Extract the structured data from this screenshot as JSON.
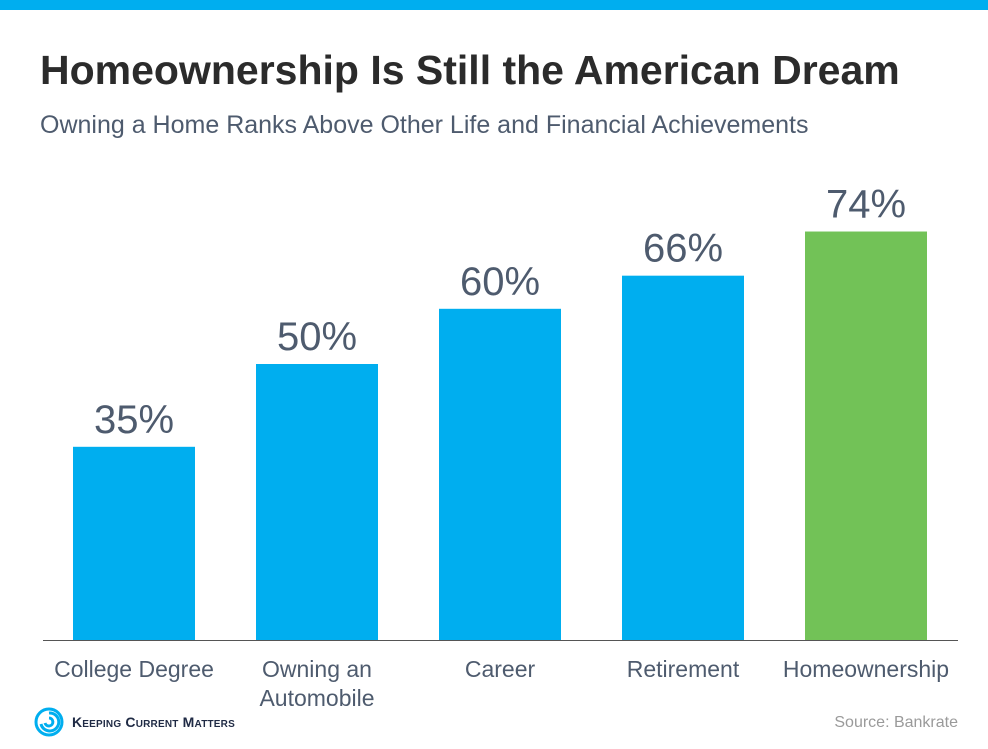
{
  "title": "Homeownership Is Still the American Dream",
  "subtitle": "Owning a Home Ranks Above Other Life and Financial Achievements",
  "colors": {
    "accent_bar": "#00aeef",
    "bar_default": "#00aeef",
    "bar_highlight": "#72c257",
    "value_label": "#4e5b6e",
    "category_label": "#4e5b6e",
    "baseline": "#555555"
  },
  "chart_data": {
    "type": "bar",
    "categories": [
      "College Degree",
      "Owning an Automobile",
      "Career",
      "Retirement",
      "Homeownership"
    ],
    "category_label_lines": [
      [
        "College Degree"
      ],
      [
        "Owning an",
        "Automobile"
      ],
      [
        "Career"
      ],
      [
        "Retirement"
      ],
      [
        "Homeownership"
      ]
    ],
    "values": [
      35,
      50,
      60,
      66,
      74
    ],
    "value_labels": [
      "35%",
      "50%",
      "60%",
      "66%",
      "74%"
    ],
    "highlight_category": "Homeownership",
    "ylim": [
      0,
      100
    ],
    "grid": false,
    "legend": "none",
    "title": "",
    "xlabel": "",
    "ylabel": ""
  },
  "footer": {
    "brand": "Keeping Current Matters",
    "brand_icon": "kcm-swirl-logo-icon",
    "source": "Source: Bankrate"
  }
}
